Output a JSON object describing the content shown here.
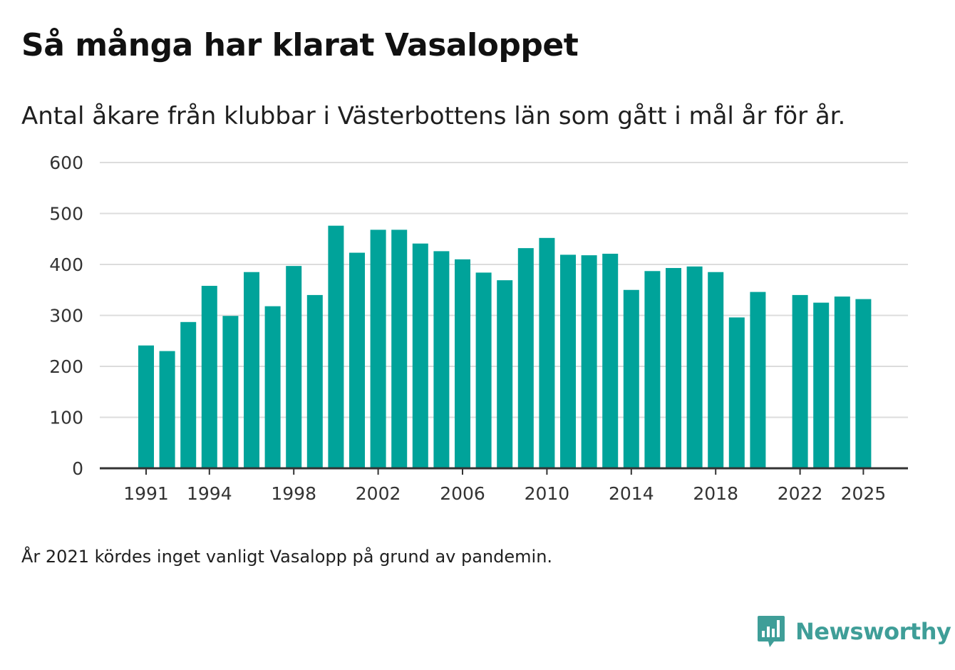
{
  "chart_data": {
    "type": "bar",
    "title": "Så många har klarat Vasaloppet",
    "subtitle": "Antal åkare från klubbar i Västerbottens län som gått i mål år för år.",
    "x": [
      1991,
      1992,
      1993,
      1994,
      1995,
      1996,
      1997,
      1998,
      1999,
      2000,
      2001,
      2002,
      2003,
      2004,
      2005,
      2006,
      2007,
      2008,
      2009,
      2010,
      2011,
      2012,
      2013,
      2014,
      2015,
      2016,
      2017,
      2018,
      2019,
      2020,
      2021,
      2022,
      2023,
      2024,
      2025
    ],
    "values": [
      241,
      230,
      287,
      358,
      299,
      385,
      318,
      397,
      340,
      476,
      423,
      468,
      468,
      441,
      426,
      410,
      384,
      369,
      432,
      452,
      419,
      418,
      421,
      350,
      387,
      393,
      396,
      385,
      296,
      346,
      null,
      340,
      325,
      337,
      332
    ],
    "x_tick_labels": [
      "1991",
      "1994",
      "1998",
      "2002",
      "2006",
      "2010",
      "2014",
      "2018",
      "2022",
      "2025"
    ],
    "y_tick_labels": [
      "0",
      "100",
      "200",
      "300",
      "400",
      "500",
      "600"
    ],
    "ylim": [
      0,
      600
    ],
    "xlabel": "",
    "ylabel": "",
    "bar_color": "#00a39a",
    "grid": true
  },
  "footnote": "År 2021 kördes inget vanligt Vasalopp på grund av pandemin.",
  "brand": {
    "name": "Newsworthy",
    "icon": "newsworthy-logo-icon",
    "color": "#3f9e98"
  }
}
